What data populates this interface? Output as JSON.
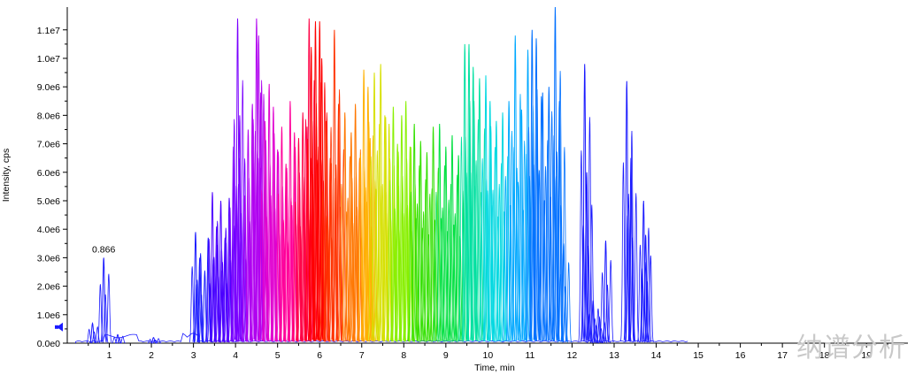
{
  "watermark": "纳谱分析",
  "chart_data": {
    "type": "line",
    "title": "",
    "xlabel": "Time, min",
    "ylabel": "Intensity, cps",
    "xlim": [
      0.0,
      19.9
    ],
    "ylim": [
      0,
      11800000
    ],
    "x_ticks": [
      1,
      2,
      3,
      4,
      5,
      6,
      7,
      8,
      9,
      10,
      11,
      12,
      13,
      14,
      15,
      16,
      17,
      18,
      19
    ],
    "x_tick_labels": [
      "1",
      "2",
      "3",
      "4",
      "5",
      "6",
      "7",
      "8",
      "9",
      "10",
      "11",
      "12",
      "13",
      "14",
      "15",
      "16",
      "17",
      "18",
      "19"
    ],
    "y_ticks": [
      0,
      1000000,
      2000000,
      3000000,
      4000000,
      5000000,
      6000000,
      7000000,
      8000000,
      9000000,
      10000000,
      11000000
    ],
    "y_tick_labels": [
      "0.0e0",
      "1.0e6",
      "2.0e6",
      "3.0e6",
      "4.0e6",
      "5.0e6",
      "6.0e6",
      "7.0e6",
      "8.0e6",
      "9.0e6",
      "1.0e7",
      "1.1e7"
    ],
    "grid": false,
    "annotations": [
      {
        "x": 0.866,
        "text": "0.866"
      }
    ],
    "series": [
      {
        "color": "#1a1aff",
        "peaks": [
          [
            0.6,
            700000
          ],
          [
            0.866,
            3000000
          ],
          [
            1.2,
            300000
          ],
          [
            2.05,
            200000
          ],
          [
            3.05,
            3900000
          ],
          [
            3.15,
            3000000
          ],
          [
            3.35,
            3700000
          ],
          [
            12.3,
            9800000
          ],
          [
            12.35,
            6000000
          ],
          [
            12.5,
            1500000
          ],
          [
            12.65,
            900000
          ],
          [
            12.8,
            3600000
          ],
          [
            13.3,
            9200000
          ],
          [
            13.4,
            6500000
          ],
          [
            13.7,
            5000000
          ],
          [
            13.75,
            3800000
          ]
        ]
      },
      {
        "color": "#4b00ff",
        "peaks": [
          [
            3.45,
            5300000
          ],
          [
            3.55,
            4100000
          ],
          [
            3.65,
            5000000
          ],
          [
            3.75,
            3700000
          ],
          [
            3.85,
            5100000
          ]
        ]
      },
      {
        "color": "#7a00ff",
        "peaks": [
          [
            3.95,
            6900000
          ],
          [
            4.05,
            11400000
          ],
          [
            4.1,
            8000000
          ],
          [
            4.2,
            5200000
          ]
        ]
      },
      {
        "color": "#b000f0",
        "peaks": [
          [
            4.3,
            7500000
          ],
          [
            4.4,
            8400000
          ],
          [
            4.5,
            11400000
          ],
          [
            4.55,
            10800000
          ],
          [
            4.6,
            8800000
          ]
        ]
      },
      {
        "color": "#e000d0",
        "peaks": [
          [
            4.7,
            7800000
          ],
          [
            4.8,
            9100000
          ],
          [
            4.9,
            8300000
          ],
          [
            5.0,
            6800000
          ]
        ]
      },
      {
        "color": "#ff0099",
        "peaks": [
          [
            5.1,
            7600000
          ],
          [
            5.2,
            6300000
          ],
          [
            5.3,
            8500000
          ],
          [
            5.4,
            7400000
          ]
        ]
      },
      {
        "color": "#ff0044",
        "peaks": [
          [
            5.5,
            7200000
          ],
          [
            5.6,
            8100000
          ],
          [
            5.7,
            7600000
          ],
          [
            5.75,
            11400000
          ]
        ]
      },
      {
        "color": "#ff0000",
        "peaks": [
          [
            5.8,
            10400000
          ],
          [
            5.9,
            11300000
          ],
          [
            6.0,
            11300000
          ],
          [
            6.05,
            10000000
          ]
        ]
      },
      {
        "color": "#ff3300",
        "peaks": [
          [
            6.15,
            7800000
          ],
          [
            6.25,
            6500000
          ],
          [
            6.35,
            11000000
          ],
          [
            6.45,
            8400000
          ]
        ]
      },
      {
        "color": "#ff7700",
        "peaks": [
          [
            6.6,
            8100000
          ],
          [
            6.75,
            7400000
          ],
          [
            6.85,
            8400000
          ],
          [
            6.95,
            6500000
          ]
        ]
      },
      {
        "color": "#ffb000",
        "peaks": [
          [
            7.05,
            9600000
          ],
          [
            7.15,
            9000000
          ],
          [
            7.2,
            7200000
          ]
        ]
      },
      {
        "color": "#d6e000",
        "peaks": [
          [
            7.3,
            9500000
          ],
          [
            7.45,
            9800000
          ],
          [
            7.55,
            8000000
          ],
          [
            7.65,
            7700000
          ]
        ]
      },
      {
        "color": "#88f000",
        "peaks": [
          [
            7.75,
            8300000
          ],
          [
            7.85,
            7000000
          ],
          [
            7.95,
            8000000
          ],
          [
            8.05,
            8500000
          ],
          [
            8.15,
            6900000
          ]
        ]
      },
      {
        "color": "#33e000",
        "peaks": [
          [
            8.25,
            7700000
          ],
          [
            8.4,
            7100000
          ],
          [
            8.55,
            6700000
          ],
          [
            8.7,
            7600000
          ]
        ]
      },
      {
        "color": "#00e040",
        "peaks": [
          [
            8.85,
            7700000
          ],
          [
            9.0,
            6900000
          ],
          [
            9.15,
            7300000
          ],
          [
            9.3,
            6600000
          ]
        ]
      },
      {
        "color": "#00e0a0",
        "peaks": [
          [
            9.45,
            10500000
          ],
          [
            9.55,
            10500000
          ],
          [
            9.65,
            9700000
          ],
          [
            9.8,
            9300000
          ]
        ]
      },
      {
        "color": "#00d8e0",
        "peaks": [
          [
            9.95,
            9400000
          ],
          [
            10.05,
            8500000
          ],
          [
            10.2,
            7800000
          ],
          [
            10.35,
            8100000
          ]
        ]
      },
      {
        "color": "#00a8ff",
        "peaks": [
          [
            10.5,
            8500000
          ],
          [
            10.65,
            10800000
          ],
          [
            10.8,
            8200000
          ],
          [
            10.95,
            10300000
          ]
        ]
      },
      {
        "color": "#0070ff",
        "peaks": [
          [
            11.05,
            11000000
          ],
          [
            11.15,
            10700000
          ],
          [
            11.3,
            8800000
          ],
          [
            11.45,
            9000000
          ],
          [
            11.6,
            11800000
          ],
          [
            11.7,
            8500000
          ],
          [
            11.8,
            3500000
          ]
        ]
      }
    ]
  }
}
